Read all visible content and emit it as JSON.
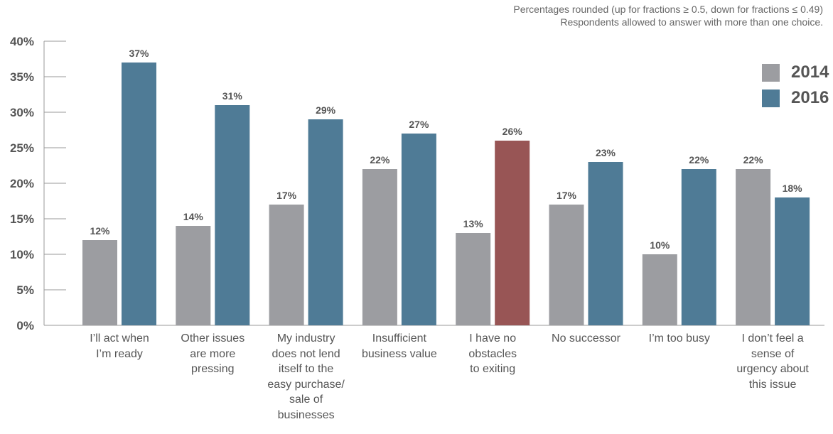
{
  "notes": [
    "Percentages rounded (up for fractions ≥ 0.5, down for fractions ≤ 0.49)",
    "Respondents allowed to answer with more than one choice."
  ],
  "chart_data": {
    "type": "bar",
    "title": "",
    "xlabel": "",
    "ylabel": "",
    "ylim": [
      0,
      40
    ],
    "yticks": [
      "0%",
      "5%",
      "10%",
      "15%",
      "20%",
      "25%",
      "30%",
      "35%",
      "40%"
    ],
    "grid": false,
    "legend_position": "top-right",
    "categories": [
      [
        "I’ll act when",
        "I’m ready"
      ],
      [
        "Other issues",
        "are more",
        "pressing"
      ],
      [
        "My industry",
        "does not lend",
        "itself to the",
        "easy purchase/",
        "sale of",
        "businesses"
      ],
      [
        "Insufficient",
        "business value"
      ],
      [
        "I have no",
        "obstacles",
        "to exiting"
      ],
      [
        "No successor"
      ],
      [
        "I’m too busy"
      ],
      [
        "I don’t feel a",
        "sense of",
        "urgency about",
        "this issue"
      ]
    ],
    "series": [
      {
        "name": "2014",
        "color": "#9c9da1",
        "values": [
          12,
          14,
          17,
          22,
          13,
          17,
          10,
          22
        ],
        "labels": [
          "12%",
          "14%",
          "17%",
          "22%",
          "13%",
          "17%",
          "10%",
          "22%"
        ]
      },
      {
        "name": "2016",
        "color": "#4f7b96",
        "values": [
          37,
          31,
          29,
          27,
          26,
          23,
          22,
          18
        ],
        "labels": [
          "37%",
          "31%",
          "29%",
          "27%",
          "26%",
          "23%",
          "22%",
          "18%"
        ]
      }
    ],
    "highlight": {
      "series_index": 1,
      "category_index": 4,
      "color": "#985555"
    }
  }
}
